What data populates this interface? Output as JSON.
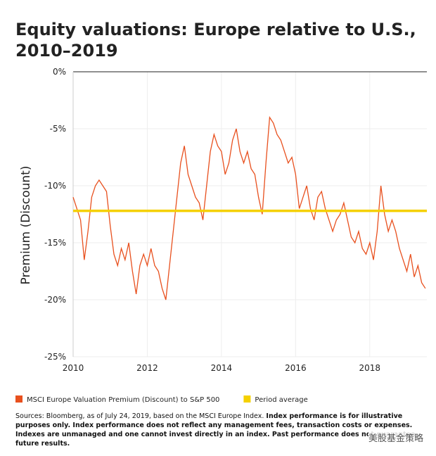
{
  "chart_data": {
    "type": "line",
    "title_lines": [
      "Equity valuations: Europe relative to U.S.,",
      "2010–2019"
    ],
    "y_label": "Premium (Discount)",
    "xlim": [
      2010,
      2019.54
    ],
    "xticks": [
      2010,
      2012,
      2014,
      2016,
      2018
    ],
    "ylim": [
      -25,
      0
    ],
    "yticks": [
      {
        "value": 0,
        "label": "0%"
      },
      {
        "value": -5,
        "label": "-5%"
      },
      {
        "value": -10,
        "label": "-10%"
      },
      {
        "value": -15,
        "label": "-15%"
      },
      {
        "value": -20,
        "label": "-20%"
      },
      {
        "value": -25,
        "label": "-25%"
      }
    ],
    "grid": true,
    "x": [
      2010.0,
      2010.1,
      2010.2,
      2010.3,
      2010.4,
      2010.5,
      2010.6,
      2010.7,
      2010.8,
      2010.9,
      2011.0,
      2011.1,
      2011.2,
      2011.3,
      2011.4,
      2011.5,
      2011.6,
      2011.7,
      2011.8,
      2011.9,
      2012.0,
      2012.1,
      2012.2,
      2012.3,
      2012.4,
      2012.5,
      2012.6,
      2012.7,
      2012.8,
      2012.9,
      2013.0,
      2013.1,
      2013.2,
      2013.3,
      2013.4,
      2013.5,
      2013.6,
      2013.7,
      2013.8,
      2013.9,
      2014.0,
      2014.1,
      2014.2,
      2014.3,
      2014.4,
      2014.5,
      2014.6,
      2014.7,
      2014.8,
      2014.9,
      2015.0,
      2015.1,
      2015.2,
      2015.3,
      2015.4,
      2015.5,
      2015.6,
      2015.7,
      2015.8,
      2015.9,
      2016.0,
      2016.1,
      2016.2,
      2016.3,
      2016.4,
      2016.5,
      2016.6,
      2016.7,
      2016.8,
      2016.9,
      2017.0,
      2017.1,
      2017.2,
      2017.3,
      2017.4,
      2017.5,
      2017.6,
      2017.7,
      2017.8,
      2017.9,
      2018.0,
      2018.1,
      2018.2,
      2018.3,
      2018.4,
      2018.5,
      2018.6,
      2018.7,
      2018.8,
      2018.9,
      2019.0,
      2019.1,
      2019.2,
      2019.3,
      2019.4,
      2019.5
    ],
    "series": [
      {
        "name": "MSCI Europe Valuation Premium (Discount) to S&P 500",
        "color": "#e8501e",
        "values": [
          -11,
          -12,
          -13,
          -16.5,
          -14,
          -11,
          -10,
          -9.5,
          -10,
          -10.5,
          -13.5,
          -16,
          -17,
          -15.5,
          -16.5,
          -15,
          -17.5,
          -19.5,
          -17,
          -16,
          -17,
          -15.5,
          -17,
          -17.5,
          -19,
          -20,
          -17,
          -14,
          -11,
          -8,
          -6.5,
          -9,
          -10,
          -11,
          -11.5,
          -13,
          -10,
          -7,
          -5.5,
          -6.5,
          -7,
          -9,
          -8,
          -6,
          -5,
          -7,
          -8,
          -7,
          -8.5,
          -9,
          -11,
          -12.5,
          -8,
          -4,
          -4.5,
          -5.5,
          -6,
          -7,
          -8,
          -7.5,
          -9,
          -12,
          -11,
          -10,
          -12,
          -13,
          -11,
          -10.5,
          -12,
          -13,
          -14,
          -13,
          -12.5,
          -11.5,
          -13,
          -14.5,
          -15,
          -14,
          -15.5,
          -16,
          -15,
          -16.5,
          -14,
          -10,
          -12.5,
          -14,
          -13,
          -14,
          -15.5,
          -16.5,
          -17.5,
          -16,
          -18,
          -17,
          -18.5,
          -19
        ]
      }
    ],
    "reference_lines": [
      {
        "name": "Period average",
        "color": "#f5d000",
        "value": -12.2
      }
    ],
    "source": "Sources: Bloomberg, as of July 24, 2019, based on the MSCI Europe Index.",
    "disclaimer": "Index performance is for illustrative purposes only.  Index performance does not reflect any management fees, transaction costs or expenses. Indexes are unmanaged and one cannot invest directly in an index. Past performance does not guarantee future results.",
    "watermark": "美股基金策略"
  }
}
